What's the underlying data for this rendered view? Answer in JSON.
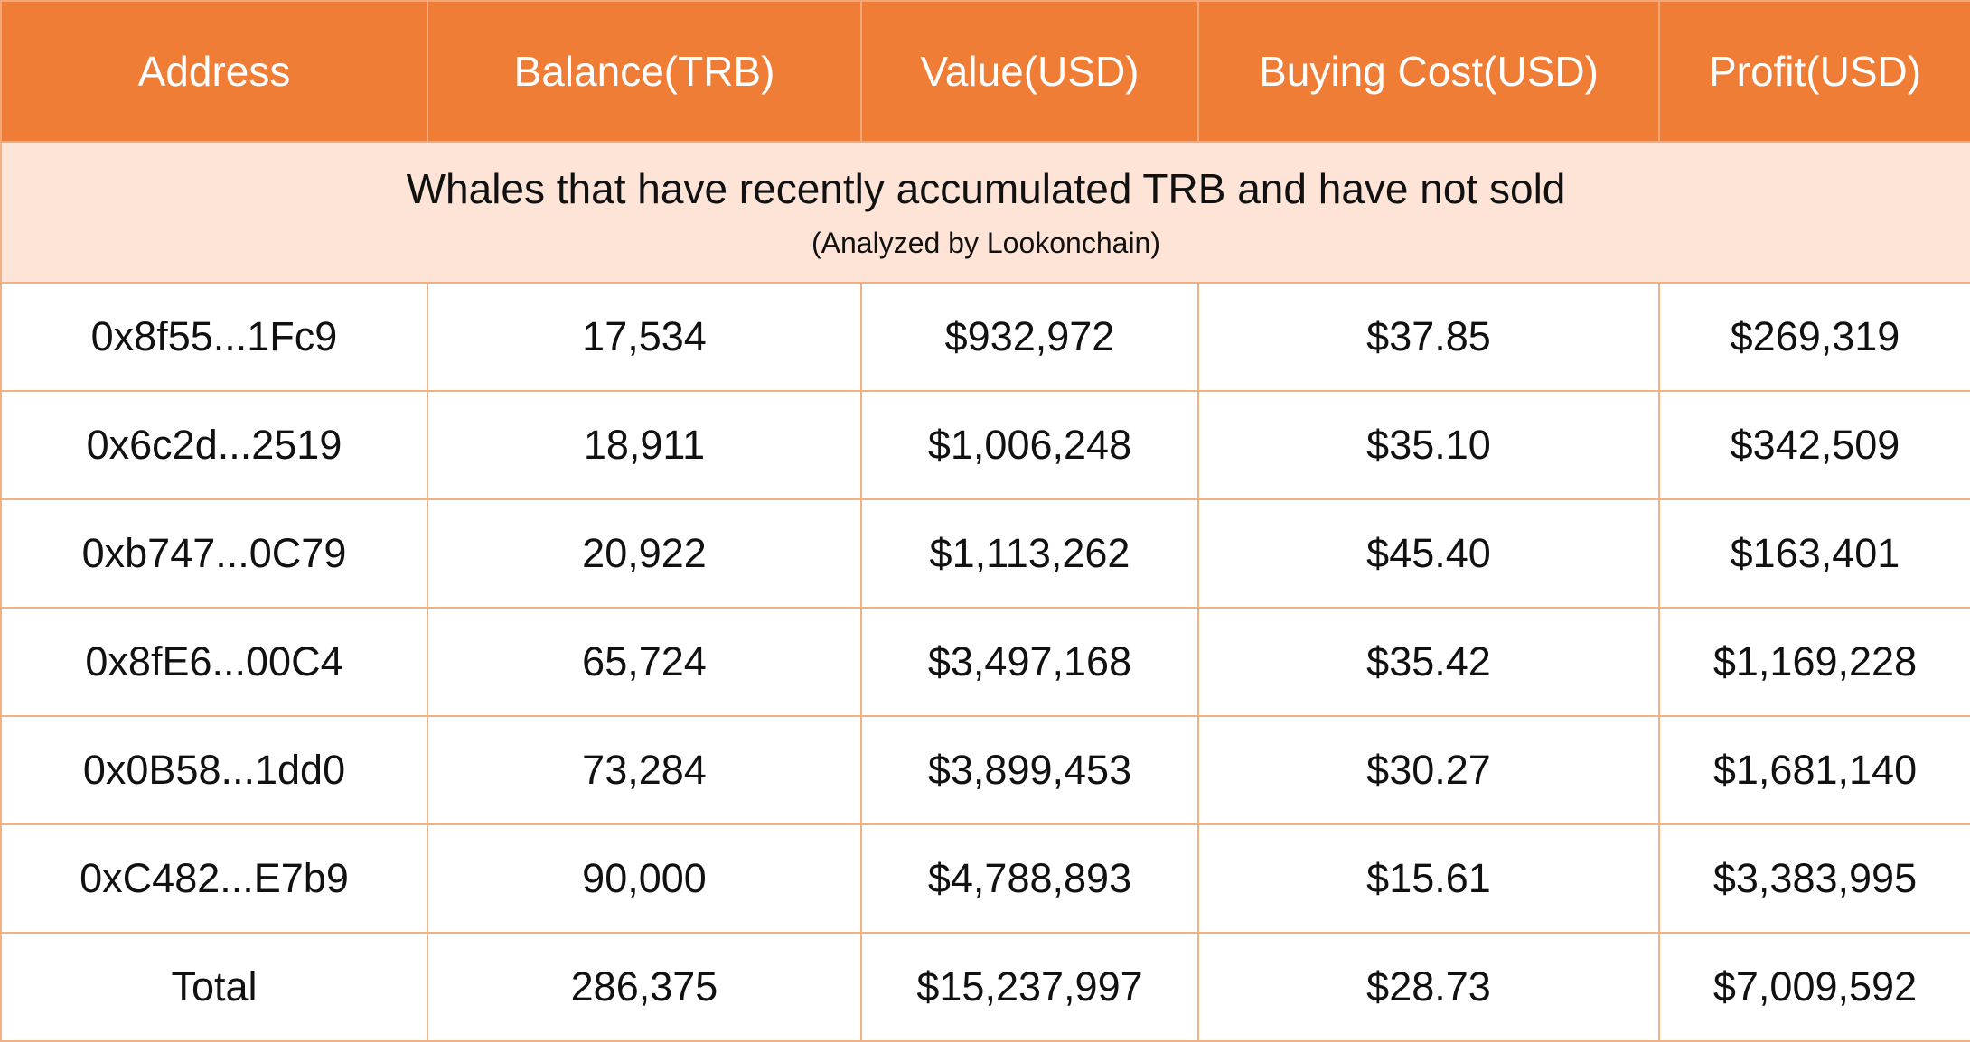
{
  "columns": [
    "Address",
    "Balance(TRB)",
    "Value(USD)",
    "Buying Cost(USD)",
    "Profit(USD)"
  ],
  "banner": {
    "title": "Whales that have recently accumulated TRB and have not sold",
    "subtitle": "(Analyzed by Lookonchain)"
  },
  "rows": [
    [
      "0x8f55...1Fc9",
      "17,534",
      "$932,972",
      "$37.85",
      "$269,319"
    ],
    [
      "0x6c2d...2519",
      "18,911",
      "$1,006,248",
      "$35.10",
      "$342,509"
    ],
    [
      "0xb747...0C79",
      "20,922",
      "$1,113,262",
      "$45.40",
      "$163,401"
    ],
    [
      "0x8fE6...00C4",
      "65,724",
      "$3,497,168",
      "$35.42",
      "$1,169,228"
    ],
    [
      "0x0B58...1dd0",
      "73,284",
      "$3,899,453",
      "$30.27",
      "$1,681,140"
    ],
    [
      "0xC482...E7b9",
      "90,000",
      "$4,788,893",
      "$15.61",
      "$3,383,995"
    ]
  ],
  "total": [
    "Total",
    "286,375",
    "$15,237,997",
    "$28.73",
    "$7,009,592"
  ],
  "colors": {
    "header_bg": "#ef7d35",
    "banner_bg": "#fde4d7",
    "border": "#f2b184"
  }
}
